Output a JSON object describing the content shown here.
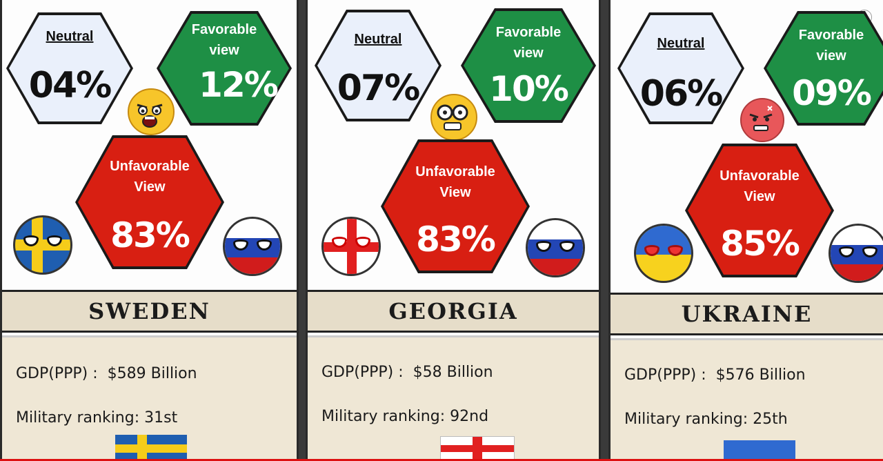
{
  "labels": {
    "neutral": "Neutral",
    "favorable": "Favorable view",
    "unfavorable": "Unfavorable View",
    "gdp_prefix": "GDP(PPP) :",
    "military_prefix": "Military ranking:"
  },
  "panels": [
    {
      "country": "SWEDEN",
      "neutral": "04%",
      "favorable": "12%",
      "unfavorable": "83%",
      "gdp": "$589 Billion",
      "military": "31st",
      "emoji": "angry-shocked-emoji"
    },
    {
      "country": "GEORGIA",
      "neutral": "07%",
      "favorable": "10%",
      "unfavorable": "83%",
      "gdp": "$58 Billion",
      "military": "92nd",
      "emoji": "nerd-glasses-emoji"
    },
    {
      "country": "UKRAINE",
      "neutral": "06%",
      "favorable": "09%",
      "unfavorable": "85%",
      "gdp": "$576 Billion",
      "military": "25th",
      "emoji": "angry-red-emoji"
    }
  ],
  "colors": {
    "neutral": "#eaf0fb",
    "favorable": "#1e8f45",
    "unfavorable": "#d81f12",
    "nameplate": "#e6ddc9"
  }
}
